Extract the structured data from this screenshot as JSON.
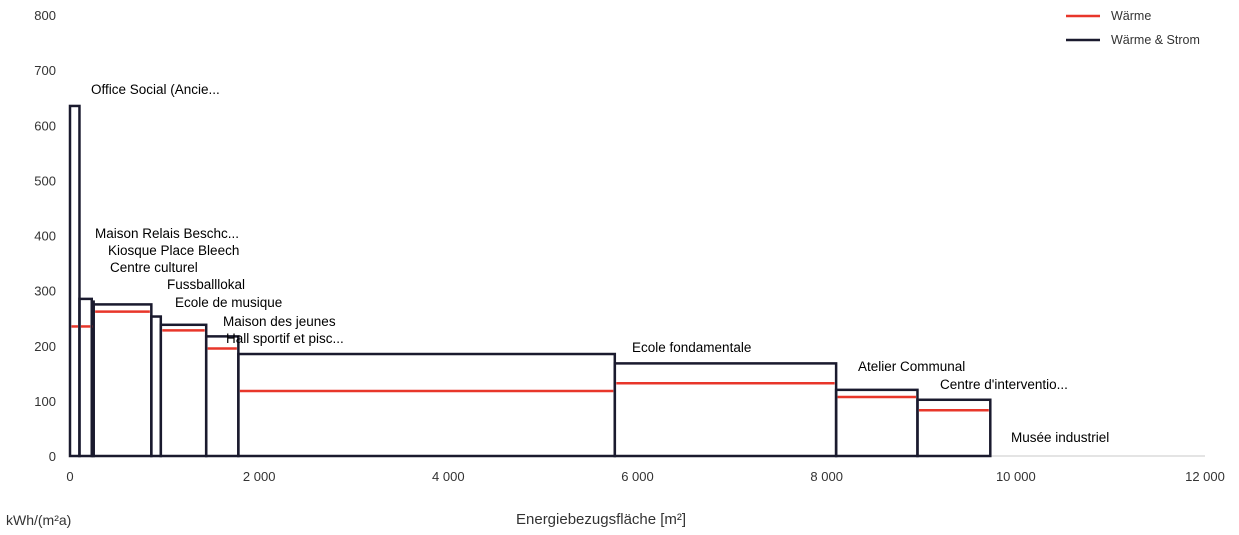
{
  "chart_data": {
    "type": "step-area",
    "xlabel": "Energiebezugsfläche [m²]",
    "ylabel": "kWh/(m²a)",
    "xlim": [
      0,
      12000
    ],
    "ylim": [
      0,
      800
    ],
    "x_ticks": [
      {
        "value": 0,
        "label": "0"
      },
      {
        "value": 2000,
        "label": "2 000"
      },
      {
        "value": 4000,
        "label": "4 000"
      },
      {
        "value": 6000,
        "label": "6 000"
      },
      {
        "value": 8000,
        "label": "8 000"
      },
      {
        "value": 10000,
        "label": "10 000"
      },
      {
        "value": 12000,
        "label": "12 000"
      }
    ],
    "y_ticks": [
      0,
      100,
      200,
      300,
      400,
      500,
      600,
      700,
      800
    ],
    "legend_position": "top-right",
    "series": [
      {
        "name": "Wärme",
        "color": "#e8362a"
      },
      {
        "name": "Wärme & Strom",
        "color": "#1a1a2e"
      }
    ],
    "buildings": [
      {
        "name": "Office Social (Ancie...",
        "x_start": 0,
        "x_end": 100,
        "waerme": 235,
        "waerme_strom": 635
      },
      {
        "name": "Maison Relais Beschc...",
        "x_start": 100,
        "x_end": 230,
        "waerme": 235,
        "waerme_strom": 285
      },
      {
        "name": "Kiosque Place Bleech",
        "x_start": 230,
        "x_end": 250,
        "waerme": 235,
        "waerme_strom": 280
      },
      {
        "name": "Centre culturel",
        "x_start": 250,
        "x_end": 860,
        "waerme": 262,
        "waerme_strom": 275
      },
      {
        "name": "Fussballlokal",
        "x_start": 860,
        "x_end": 960,
        "waerme": 0,
        "waerme_strom": 253
      },
      {
        "name": "Ecole de musique",
        "x_start": 960,
        "x_end": 1440,
        "waerme": 228,
        "waerme_strom": 238
      },
      {
        "name": "Maison des jeunes",
        "x_start": 1440,
        "x_end": 1780,
        "waerme": 195,
        "waerme_strom": 217
      },
      {
        "name": "Hall sportif et pisc...",
        "x_start": 1780,
        "x_end": 5760,
        "waerme": 118,
        "waerme_strom": 185
      },
      {
        "name": "Ecole fondamentale",
        "x_start": 5760,
        "x_end": 8100,
        "waerme": 132,
        "waerme_strom": 168
      },
      {
        "name": "Atelier Communal",
        "x_start": 8100,
        "x_end": 8960,
        "waerme": 107,
        "waerme_strom": 120
      },
      {
        "name": "Centre d'interventio...",
        "x_start": 8960,
        "x_end": 9730,
        "waerme": 83,
        "waerme_strom": 102
      },
      {
        "name": "Musée industriel",
        "x_start": 9730,
        "x_end": 9800,
        "waerme": 0,
        "waerme_strom": 0
      }
    ]
  }
}
